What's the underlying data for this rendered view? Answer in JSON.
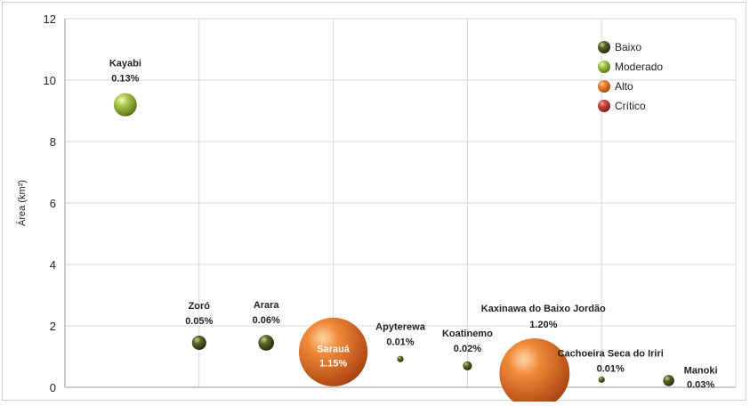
{
  "chart_data": {
    "type": "bubble",
    "ylabel": "Área (km²)",
    "ylim": [
      0,
      12
    ],
    "yticks": [
      0,
      2,
      4,
      6,
      8,
      10,
      12
    ],
    "xlim": [
      0,
      10
    ],
    "grid": true,
    "legend": {
      "placement": "top-right",
      "entries": [
        {
          "name": "Baixo",
          "color": "#3d4a1e"
        },
        {
          "name": "Moderado",
          "color": "#8fb339"
        },
        {
          "name": "Alto",
          "color": "#e8742a"
        },
        {
          "name": "Crítico",
          "color": "#c0393a"
        }
      ]
    },
    "points": [
      {
        "name": "Kayabi",
        "pct": "0.13%",
        "x": 0.9,
        "y": 9.2,
        "category": "Moderado"
      },
      {
        "name": "Zoró",
        "pct": "0.05%",
        "x": 2.0,
        "y": 1.45,
        "category": "Baixo"
      },
      {
        "name": "Arara",
        "pct": "0.06%",
        "x": 3.0,
        "y": 1.45,
        "category": "Baixo"
      },
      {
        "name": "Sarauá",
        "pct": "1.15%",
        "x": 4.0,
        "y": 1.15,
        "category": "Alto"
      },
      {
        "name": "Apyterewa",
        "pct": "0.01%",
        "x": 5.0,
        "y": 0.92,
        "category": "Baixo"
      },
      {
        "name": "Koatinemo",
        "pct": "0.02%",
        "x": 6.0,
        "y": 0.7,
        "category": "Baixo"
      },
      {
        "name": "Kaxinawa do Baixo Jordão",
        "pct": "1.20%",
        "x": 7.0,
        "y": 0.45,
        "category": "Alto"
      },
      {
        "name": "Cachoeira Seca do Iriri",
        "pct": "0.01%",
        "x": 8.0,
        "y": 0.25,
        "category": "Baixo"
      },
      {
        "name": "Manoki",
        "pct": "0.03%",
        "x": 9.0,
        "y": 0.22,
        "category": "Baixo"
      }
    ]
  }
}
